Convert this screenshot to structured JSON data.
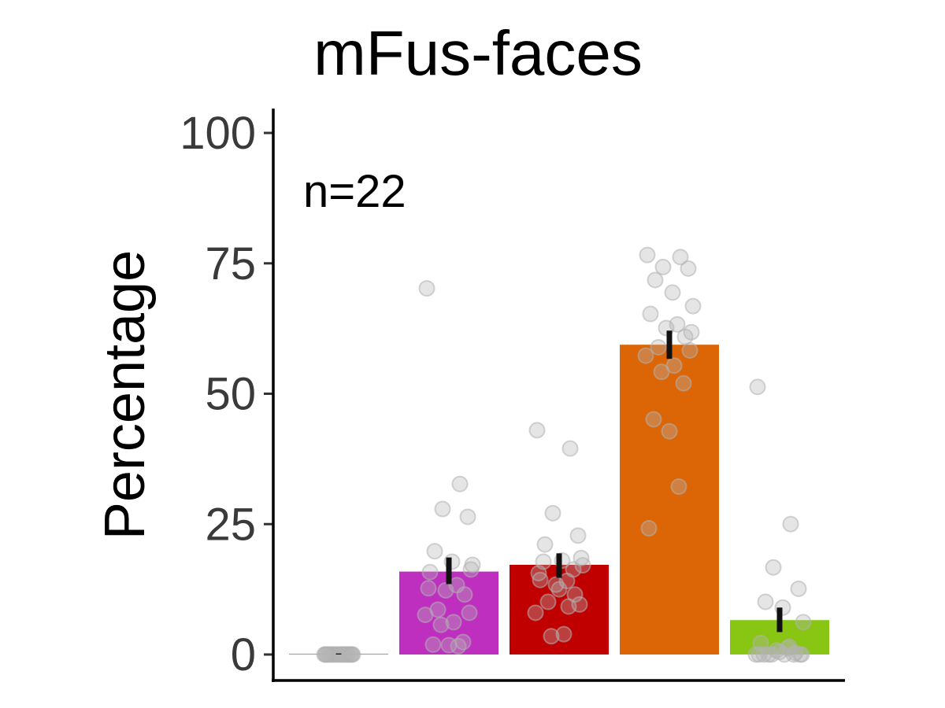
{
  "chart_data": {
    "type": "bar",
    "title": "mFus-faces",
    "xlabel": "",
    "ylabel": "Percentage",
    "annotation": "n=22",
    "ylim": [
      0,
      105
    ],
    "yticks": [
      0,
      25,
      50,
      75,
      100
    ],
    "ytick_labels": [
      "0",
      "25",
      "50",
      "75",
      "100"
    ],
    "grid": false,
    "legend": "none",
    "bars": [
      {
        "value": 0.1,
        "error": [
          0,
          0.2
        ],
        "color": "#999999",
        "points": [
          0,
          0,
          0,
          0,
          0,
          0,
          0,
          0,
          0,
          0,
          0,
          0,
          0,
          0,
          0,
          0,
          0,
          0,
          0,
          0,
          0,
          0
        ]
      },
      {
        "value": 15.9,
        "error": [
          13.5,
          18.6
        ],
        "color": "#bf2fbf",
        "points": [
          70.2,
          32.7,
          27.9,
          26.4,
          19.8,
          17.8,
          17.2,
          15.8,
          13.3,
          12.3,
          11.5,
          8.6,
          8.0,
          7.6,
          6.2,
          5.7,
          2.4,
          1.9,
          1.8,
          1.6,
          12.7,
          16.3
        ]
      },
      {
        "value": 17.2,
        "error": [
          14.7,
          19.4
        ],
        "color": "#c00000",
        "points": [
          43.0,
          39.5,
          27.1,
          22.8,
          21.1,
          18.0,
          17.1,
          14.3,
          14.1,
          13.4,
          11.5,
          10.1,
          9.6,
          8.0,
          3.9,
          3.5,
          16.3,
          17.8,
          12.5,
          9.2,
          15.6,
          18.5
        ]
      },
      {
        "value": 59.4,
        "error": [
          56.7,
          62.1
        ],
        "color": "#dc6605",
        "points": [
          76.6,
          76.2,
          74.3,
          74.0,
          71.8,
          69.4,
          66.8,
          65.3,
          63.3,
          62.6,
          60.9,
          58.9,
          58.3,
          57.3,
          55.4,
          54.2,
          52.0,
          45.1,
          42.8,
          32.2,
          24.2,
          61.8
        ]
      },
      {
        "value": 6.6,
        "error": [
          4.3,
          9.0
        ],
        "color": "#88c613",
        "points": [
          51.3,
          25.0,
          16.7,
          12.6,
          10.1,
          9.0,
          6.2,
          2.2,
          1.2,
          0.8,
          0.3,
          0,
          0,
          0,
          0,
          0,
          0,
          0,
          0.5,
          1.5,
          0,
          0
        ]
      }
    ]
  }
}
